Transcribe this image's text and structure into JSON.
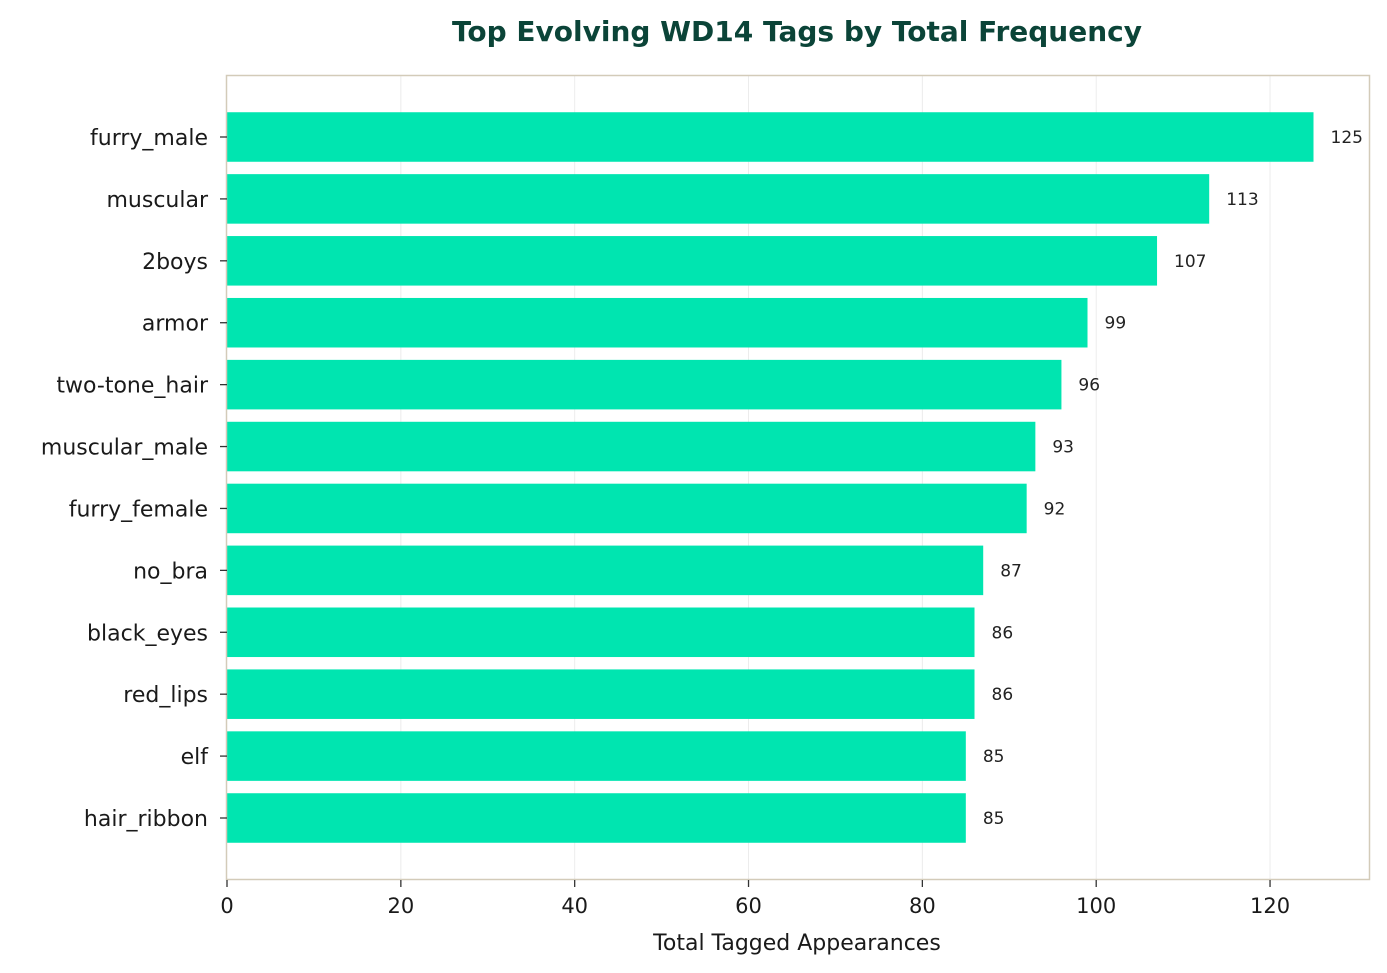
{
  "chart_data": {
    "type": "bar",
    "orientation": "horizontal",
    "title": "Top Evolving WD14 Tags by Total Frequency",
    "xlabel": "Total Tagged Appearances",
    "ylabel": "",
    "categories": [
      "furry_male",
      "muscular",
      "2boys",
      "armor",
      "two-tone_hair",
      "muscular_male",
      "furry_female",
      "no_bra",
      "black_eyes",
      "red_lips",
      "elf",
      "hair_ribbon"
    ],
    "values": [
      125,
      113,
      107,
      99,
      96,
      93,
      92,
      87,
      86,
      86,
      85,
      85
    ],
    "data_labels": [
      "125",
      "113",
      "107",
      "99",
      "96",
      "93",
      "92",
      "87",
      "86",
      "86",
      "85",
      "85"
    ],
    "xlim": [
      0,
      131.5
    ],
    "xticks": [
      0,
      20,
      40,
      60,
      80,
      100,
      120
    ],
    "xtick_labels": [
      "0",
      "20",
      "40",
      "60",
      "80",
      "100",
      "120"
    ],
    "grid": "vertical",
    "legend": "none",
    "colors": {
      "bar": "#00e5b0",
      "title": "#0b4438",
      "frame": "#d3cbb9",
      "grid": "#ececec"
    }
  }
}
